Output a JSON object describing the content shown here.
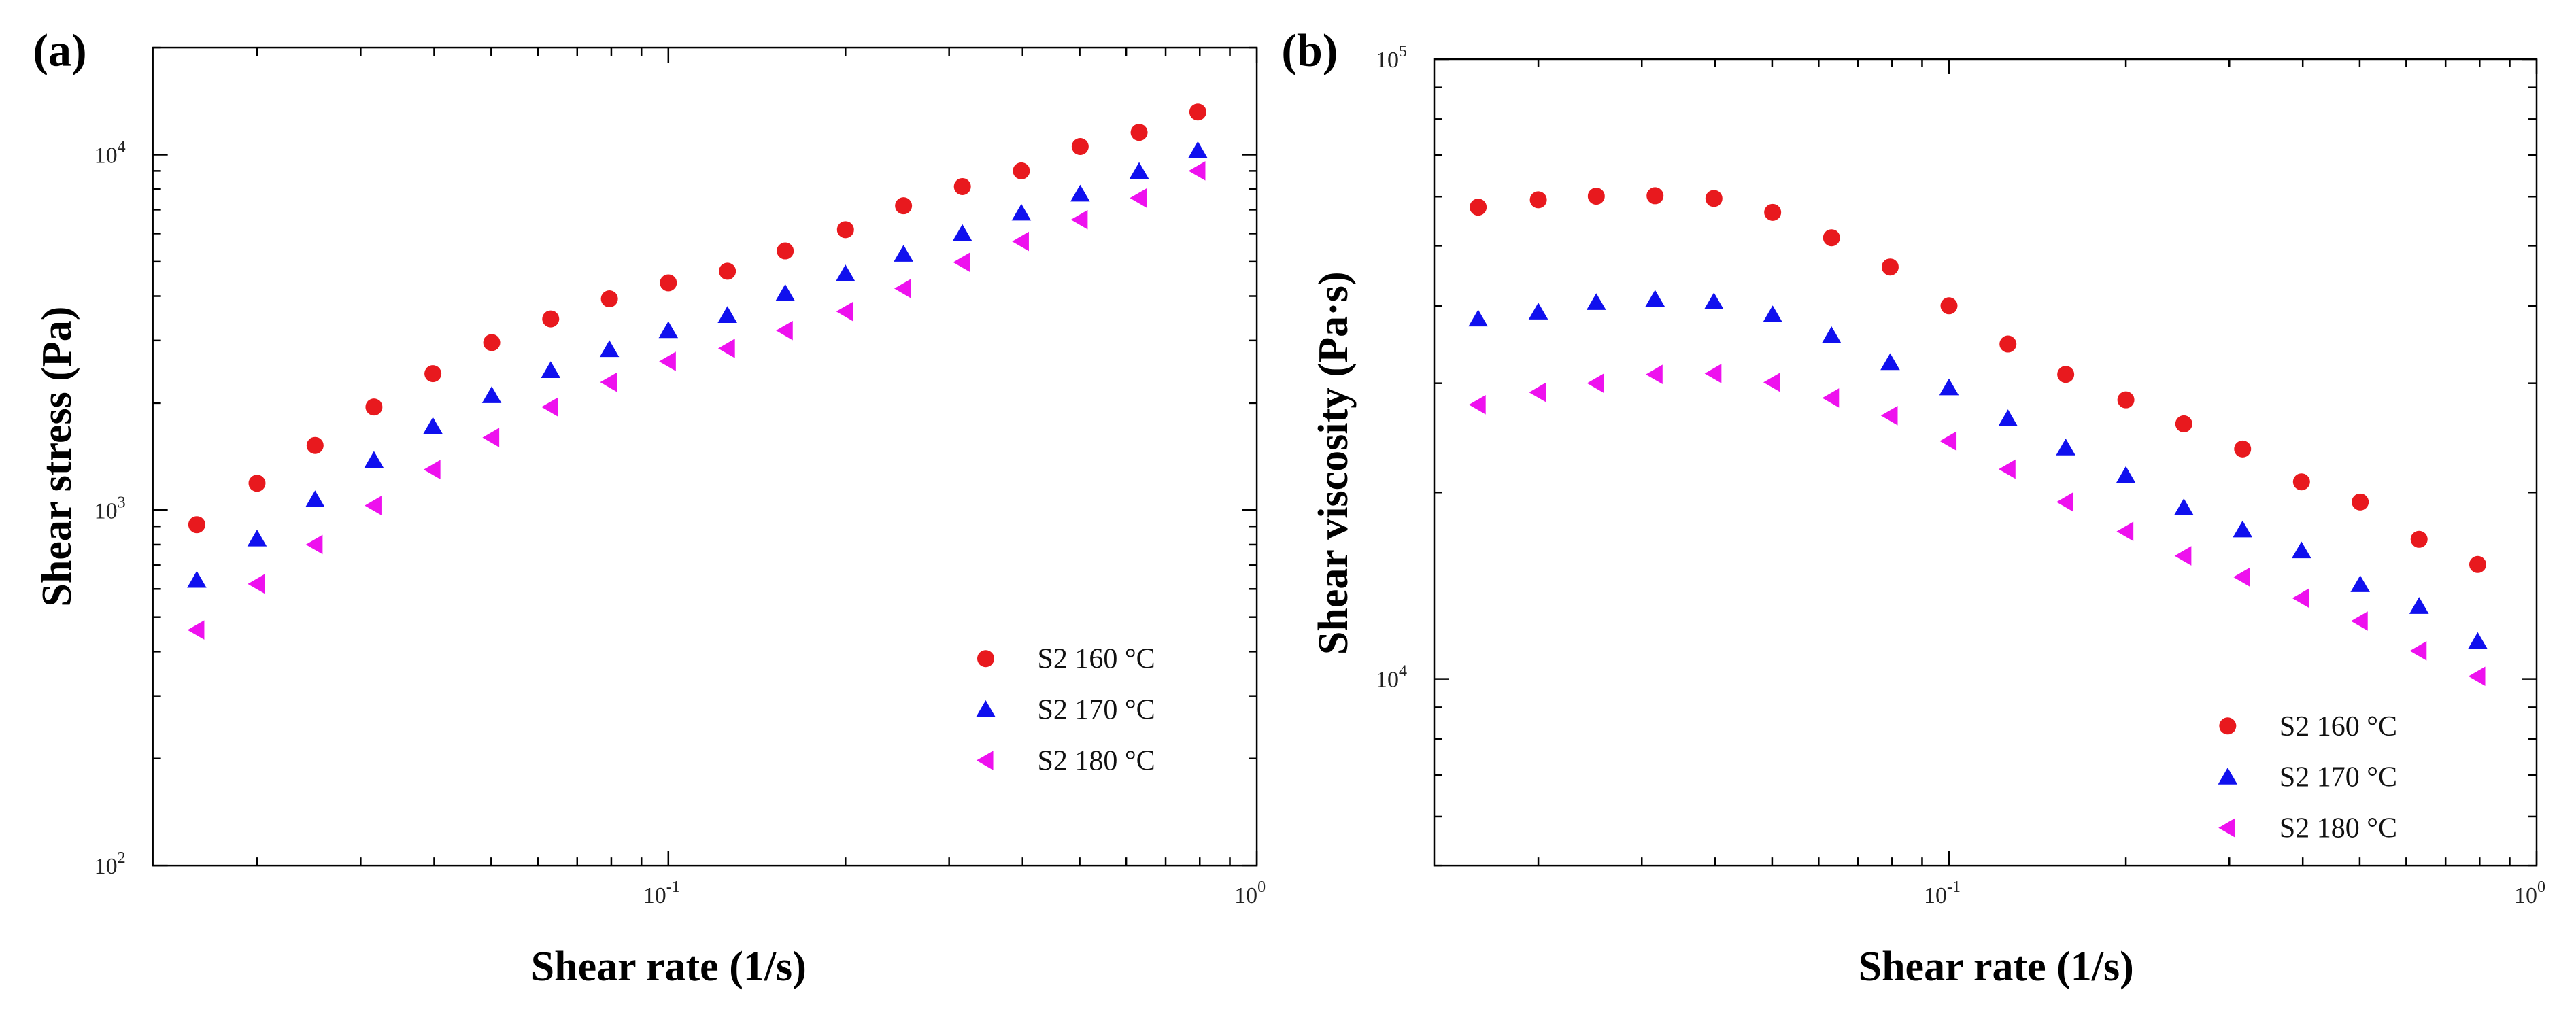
{
  "chart_data": [
    {
      "type": "scatter",
      "panel_label": "(a)",
      "title": "",
      "xlabel": "Shear rate (1/s)",
      "ylabel": "Shear stress (Pa)",
      "xscale": "log",
      "yscale": "log",
      "xlim": [
        0.0133,
        1.0
      ],
      "ylim": [
        100,
        20000
      ],
      "x_ticks": [
        {
          "value": 0.1,
          "base": "10",
          "exp": "-1"
        },
        {
          "value": 1.0,
          "base": "10",
          "exp": "0"
        }
      ],
      "y_ticks": [
        {
          "value": 100,
          "base": "10",
          "exp": "2"
        },
        {
          "value": 1000,
          "base": "10",
          "exp": "3"
        },
        {
          "value": 10000,
          "base": "10",
          "exp": "4"
        }
      ],
      "legend_position": "lower-right",
      "x": [
        0.0158,
        0.02,
        0.0251,
        0.0316,
        0.0398,
        0.0501,
        0.0631,
        0.0794,
        0.1,
        0.126,
        0.158,
        0.2,
        0.251,
        0.316,
        0.398,
        0.501,
        0.631,
        0.794
      ],
      "series": [
        {
          "name": "S2 160 °C",
          "marker": "circle",
          "color": "#e8191e",
          "values": [
            910,
            1190,
            1520,
            1950,
            2420,
            2960,
            3450,
            3930,
            4360,
            4700,
            5360,
            6150,
            7180,
            8130,
            9000,
            10540,
            11550,
            13180
          ]
        },
        {
          "name": "S2 170 °C",
          "marker": "triangle-up",
          "color": "#1010ee",
          "values": [
            635,
            830,
            1070,
            1380,
            1720,
            2100,
            2470,
            2830,
            3200,
            3530,
            4070,
            4620,
            5250,
            6000,
            6850,
            7750,
            8970,
            10270
          ]
        },
        {
          "name": "S2 180 °C",
          "marker": "triangle-left",
          "color": "#ee11ee",
          "values": [
            460,
            620,
            800,
            1030,
            1300,
            1600,
            1950,
            2290,
            2620,
            2850,
            3200,
            3620,
            4200,
            4980,
            5700,
            6560,
            7550,
            9000
          ]
        }
      ]
    },
    {
      "type": "scatter",
      "panel_label": "(b)",
      "title": "",
      "xlabel": "Shear rate (1/s)",
      "ylabel": "Shear viscosity (Pa·s)",
      "xscale": "log",
      "yscale": "log",
      "xlim": [
        0.0133,
        1.0
      ],
      "ylim": [
        5000,
        100000
      ],
      "x_ticks": [
        {
          "value": 0.1,
          "base": "10",
          "exp": "-1"
        },
        {
          "value": 1.0,
          "base": "10",
          "exp": "0"
        }
      ],
      "y_ticks": [
        {
          "value": 10000,
          "base": "10",
          "exp": "4"
        },
        {
          "value": 100000,
          "base": "10",
          "exp": "5"
        }
      ],
      "legend_position": "lower-right",
      "x": [
        0.0158,
        0.02,
        0.0251,
        0.0316,
        0.0398,
        0.0501,
        0.0631,
        0.0794,
        0.1,
        0.126,
        0.158,
        0.2,
        0.251,
        0.316,
        0.398,
        0.501,
        0.631,
        0.794
      ],
      "series": [
        {
          "name": "S2 160 °C",
          "marker": "circle",
          "color": "#e8191e",
          "values": [
            57700,
            59300,
            60100,
            60200,
            59600,
            56600,
            51500,
            46200,
            40000,
            34700,
            31000,
            28200,
            25800,
            23500,
            20800,
            19300,
            16800,
            15300
          ]
        },
        {
          "name": "S2 170 °C",
          "marker": "triangle-up",
          "color": "#1010ee",
          "values": [
            38100,
            39100,
            40500,
            41000,
            40600,
            38700,
            35800,
            32400,
            29500,
            26300,
            23600,
            21300,
            18900,
            17400,
            16100,
            14200,
            13100,
            11500
          ]
        },
        {
          "name": "S2 180 °C",
          "marker": "triangle-left",
          "color": "#ee11ee",
          "values": [
            27700,
            29000,
            30000,
            31000,
            31100,
            30100,
            28400,
            26600,
            24200,
            21800,
            19300,
            17300,
            15800,
            14600,
            13500,
            12400,
            11100,
            10100
          ]
        }
      ]
    }
  ]
}
